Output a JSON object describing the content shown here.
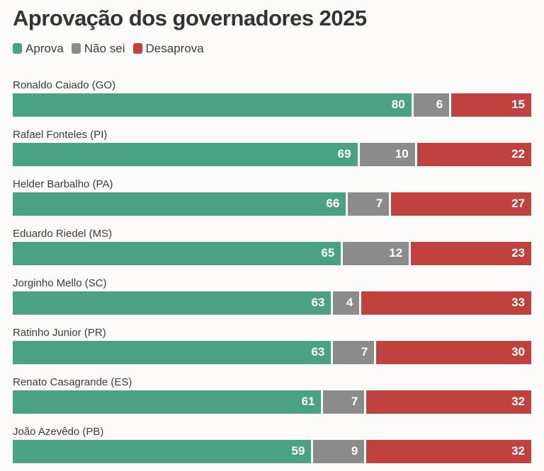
{
  "page": {
    "background_color": "#fcfbfa",
    "title_color": "#333333",
    "label_color": "#3b3b3b"
  },
  "header": {
    "title": "Aprovação dos governadores 2025"
  },
  "legend": [
    {
      "label": "Aprova",
      "color": "#4ba183"
    },
    {
      "label": "Não sei",
      "color": "#8b8b8b"
    },
    {
      "label": "Desaprova",
      "color": "#c0423e"
    }
  ],
  "chart_data": {
    "type": "bar",
    "orientation": "horizontal",
    "stacked": true,
    "normalized_rows": true,
    "grid": false,
    "legend_position": "top",
    "title": "Aprovação dos governadores 2025",
    "xlabel": "",
    "ylabel": "",
    "categories": [
      "Ronaldo Caiado (GO)",
      "Rafael Fonteles (PI)",
      "Helder Barbalho (PA)",
      "Eduardo Riedel (MS)",
      "Jorginho Mello (SC)",
      "Ratinho Junior (PR)",
      "Renato Casagrande (ES)",
      "João Azevêdo (PB)"
    ],
    "series": [
      {
        "name": "Aprova",
        "key": "aprova",
        "color": "#4ba183",
        "values": [
          80,
          69,
          66,
          65,
          63,
          63,
          61,
          59
        ]
      },
      {
        "name": "Não sei",
        "key": "nao-sei",
        "color": "#8b8b8b",
        "values": [
          6,
          10,
          7,
          12,
          4,
          7,
          7,
          9
        ]
      },
      {
        "name": "Desaprova",
        "key": "desaprova",
        "color": "#c0423e",
        "values": [
          15,
          22,
          27,
          23,
          33,
          30,
          32,
          32
        ]
      }
    ]
  }
}
